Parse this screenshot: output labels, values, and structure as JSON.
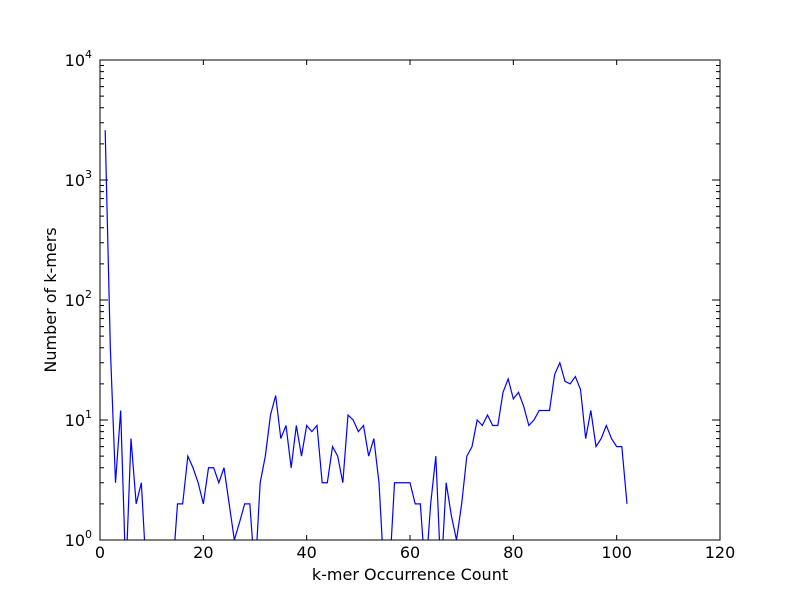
{
  "chart_data": {
    "type": "line",
    "title": "",
    "xlabel": "k-mer Occurrence Count",
    "ylabel": "Number of k-mers",
    "xlim": [
      0,
      120
    ],
    "ylim": [
      1,
      10000
    ],
    "yscale": "log",
    "grid": false,
    "x_ticks": [
      "0",
      "20",
      "40",
      "60",
      "80",
      "100",
      "120"
    ],
    "y_ticks": [
      {
        "base": "10",
        "exp": "0"
      },
      {
        "base": "10",
        "exp": "1"
      },
      {
        "base": "10",
        "exp": "2"
      },
      {
        "base": "10",
        "exp": "3"
      },
      {
        "base": "10",
        "exp": "4"
      }
    ],
    "line_color": "#0000ff",
    "series": [
      {
        "points": [
          [
            1,
            2600
          ],
          [
            2,
            40
          ],
          [
            3,
            3
          ],
          [
            4,
            12
          ],
          [
            5,
            0.5
          ],
          [
            6,
            7
          ],
          [
            7,
            2
          ],
          [
            8,
            3
          ],
          [
            9,
            0.5
          ],
          [
            14,
            0.5
          ],
          [
            15,
            2
          ],
          [
            16,
            2
          ],
          [
            17,
            5
          ],
          [
            18,
            4
          ],
          [
            19,
            3
          ],
          [
            20,
            2
          ],
          [
            21,
            4
          ],
          [
            22,
            4
          ],
          [
            23,
            3
          ],
          [
            24,
            4
          ],
          [
            25,
            2
          ],
          [
            26,
            1
          ],
          [
            27,
            1.4
          ],
          [
            28,
            2
          ],
          [
            29,
            2
          ],
          [
            30,
            0.5
          ],
          [
            31,
            3
          ],
          [
            32,
            5
          ],
          [
            33,
            11
          ],
          [
            34,
            16
          ],
          [
            35,
            7
          ],
          [
            36,
            9
          ],
          [
            37,
            4
          ],
          [
            38,
            9
          ],
          [
            39,
            5
          ],
          [
            40,
            9
          ],
          [
            41,
            8
          ],
          [
            42,
            9
          ],
          [
            43,
            3
          ],
          [
            44,
            3
          ],
          [
            45,
            6
          ],
          [
            46,
            5
          ],
          [
            47,
            3
          ],
          [
            48,
            11
          ],
          [
            49,
            10
          ],
          [
            50,
            8
          ],
          [
            51,
            9
          ],
          [
            52,
            5
          ],
          [
            53,
            7
          ],
          [
            54,
            3
          ],
          [
            55,
            0.5
          ],
          [
            56,
            0.5
          ],
          [
            57,
            3
          ],
          [
            58,
            3
          ],
          [
            59,
            3
          ],
          [
            60,
            3
          ],
          [
            61,
            2
          ],
          [
            62,
            2
          ],
          [
            63,
            0.5
          ],
          [
            64,
            2
          ],
          [
            65,
            5
          ],
          [
            66,
            0.5
          ],
          [
            67,
            3
          ],
          [
            68,
            1.6
          ],
          [
            69,
            1
          ],
          [
            70,
            2
          ],
          [
            71,
            5
          ],
          [
            72,
            6
          ],
          [
            73,
            10
          ],
          [
            74,
            9
          ],
          [
            75,
            11
          ],
          [
            76,
            9
          ],
          [
            77,
            9
          ],
          [
            78,
            17
          ],
          [
            79,
            22
          ],
          [
            80,
            15
          ],
          [
            81,
            17
          ],
          [
            82,
            13
          ],
          [
            83,
            9
          ],
          [
            84,
            10
          ],
          [
            85,
            12
          ],
          [
            86,
            12
          ],
          [
            87,
            12
          ],
          [
            88,
            24
          ],
          [
            89,
            30
          ],
          [
            90,
            21
          ],
          [
            91,
            20
          ],
          [
            92,
            23
          ],
          [
            93,
            18
          ],
          [
            94,
            7
          ],
          [
            95,
            12
          ],
          [
            96,
            6
          ],
          [
            97,
            7
          ],
          [
            98,
            9
          ],
          [
            99,
            7
          ],
          [
            100,
            6
          ],
          [
            101,
            6
          ],
          [
            102,
            2
          ]
        ]
      }
    ]
  }
}
